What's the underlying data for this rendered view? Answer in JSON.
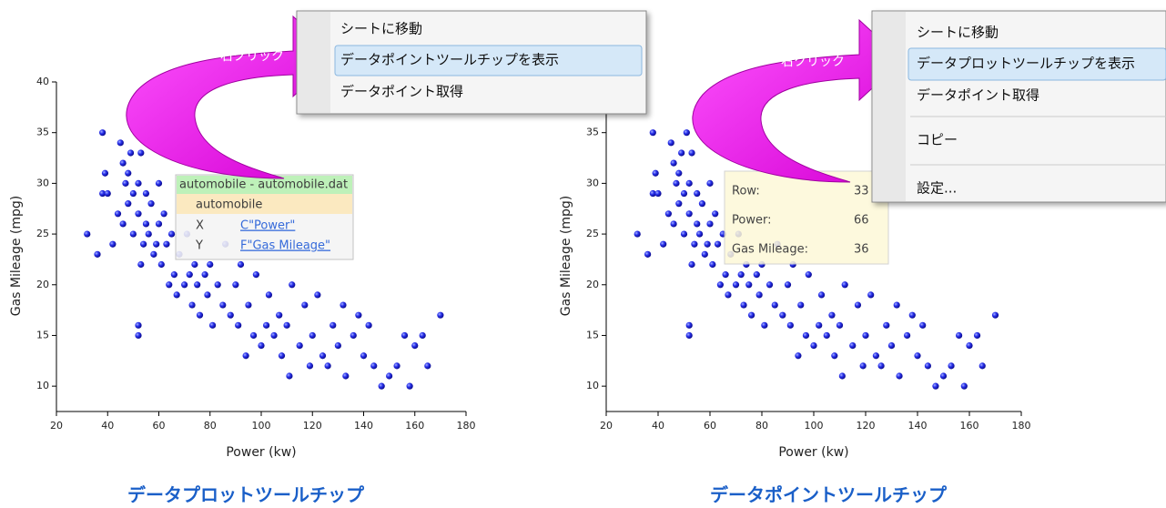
{
  "chart_data": [
    {
      "type": "scatter",
      "x_label": "Power (kw)",
      "y_label": "Gas Mileage (mpg)",
      "color": "#2a33ee",
      "x": [
        32,
        36,
        38,
        38,
        39,
        40,
        42,
        44,
        45,
        46,
        46,
        47,
        48,
        48,
        49,
        50,
        50,
        51,
        52,
        52,
        52,
        52,
        53,
        53,
        54,
        55,
        55,
        56,
        57,
        58,
        59,
        60,
        60,
        61,
        62,
        63,
        64,
        65,
        66,
        66,
        67,
        68,
        70,
        71,
        72,
        73,
        74,
        75,
        76,
        78,
        79,
        80,
        81,
        83,
        85,
        86,
        88,
        90,
        91,
        92,
        94,
        95,
        97,
        98,
        100,
        102,
        103,
        105,
        107,
        108,
        110,
        111,
        112,
        115,
        117,
        119,
        120,
        122,
        124,
        126,
        128,
        130,
        132,
        133,
        136,
        138,
        140,
        142,
        144,
        147,
        150,
        153,
        156,
        158,
        160,
        163,
        165,
        170
      ],
      "y": [
        25,
        23,
        29,
        35,
        31,
        29,
        24,
        27,
        34,
        26,
        32,
        30,
        28,
        31,
        33,
        25,
        29,
        35,
        16,
        27,
        30,
        15,
        33,
        22,
        24,
        26,
        29,
        25,
        28,
        23,
        24,
        26,
        30,
        22,
        27,
        24,
        20,
        25,
        36,
        21,
        19,
        23,
        20,
        25,
        21,
        18,
        22,
        20,
        17,
        21,
        19,
        22,
        16,
        20,
        18,
        24,
        17,
        20,
        16,
        22,
        13,
        18,
        15,
        21,
        14,
        16,
        19,
        15,
        17,
        13,
        16,
        11,
        20,
        14,
        18,
        12,
        15,
        19,
        13,
        12,
        16,
        14,
        18,
        11,
        15,
        17,
        13,
        16,
        12,
        10,
        11,
        12,
        15,
        10,
        14,
        15,
        12,
        17
      ],
      "xlim": [
        20,
        180
      ],
      "ylim": [
        7.5,
        40
      ],
      "xticks": [
        20,
        40,
        60,
        80,
        100,
        120,
        140,
        160,
        180
      ],
      "yticks": [
        10,
        15,
        20,
        25,
        30,
        35,
        40
      ]
    },
    {
      "type": "scatter",
      "x_label": "Power (kw)",
      "y_label": "Gas Mileage (mpg)",
      "color": "#2a33ee",
      "x": [
        32,
        36,
        38,
        38,
        39,
        40,
        42,
        44,
        45,
        46,
        46,
        47,
        48,
        48,
        49,
        50,
        50,
        51,
        52,
        52,
        52,
        52,
        53,
        53,
        54,
        55,
        55,
        56,
        57,
        58,
        59,
        60,
        60,
        61,
        62,
        63,
        64,
        65,
        66,
        66,
        67,
        68,
        70,
        71,
        72,
        73,
        74,
        75,
        76,
        78,
        79,
        80,
        81,
        83,
        85,
        86,
        88,
        90,
        91,
        92,
        94,
        95,
        97,
        98,
        100,
        102,
        103,
        105,
        107,
        108,
        110,
        111,
        112,
        115,
        117,
        119,
        120,
        122,
        124,
        126,
        128,
        130,
        132,
        133,
        136,
        138,
        140,
        142,
        144,
        147,
        150,
        153,
        156,
        158,
        160,
        163,
        165,
        170
      ],
      "y": [
        25,
        23,
        29,
        35,
        31,
        29,
        24,
        27,
        34,
        26,
        32,
        30,
        28,
        31,
        33,
        25,
        29,
        35,
        16,
        27,
        30,
        15,
        33,
        22,
        24,
        26,
        29,
        25,
        28,
        23,
        24,
        26,
        30,
        22,
        27,
        24,
        20,
        25,
        36,
        21,
        19,
        23,
        20,
        25,
        21,
        18,
        22,
        20,
        17,
        21,
        19,
        22,
        16,
        20,
        18,
        24,
        17,
        20,
        16,
        22,
        13,
        18,
        15,
        21,
        14,
        16,
        19,
        15,
        17,
        13,
        16,
        11,
        20,
        14,
        18,
        12,
        15,
        19,
        13,
        12,
        16,
        14,
        18,
        11,
        15,
        17,
        13,
        16,
        12,
        10,
        11,
        12,
        15,
        10,
        14,
        15,
        12,
        17
      ],
      "xlim": [
        20,
        180
      ],
      "ylim": [
        7.5,
        40
      ],
      "xticks": [
        20,
        40,
        60,
        80,
        100,
        120,
        140,
        160,
        180
      ],
      "yticks": [
        10,
        15,
        20,
        25,
        30,
        35,
        40
      ]
    }
  ],
  "panels": [
    {
      "menu": [
        "シートに移動",
        "データポイントツールチップを表示",
        "データポイント取得"
      ],
      "gesture": "右クリック",
      "tooltip": {
        "title": "automobile - automobile.dat",
        "book": "automobile",
        "rows": [
          [
            "X",
            "C\"Power\""
          ],
          [
            "Y",
            "F\"Gas Mileage\""
          ]
        ]
      },
      "caption": "データプロットツールチップ"
    },
    {
      "menu": [
        "シートに移動",
        "データプロットツールチップを表示",
        "データポイント取得",
        "コピー",
        "設定..."
      ],
      "gesture": "右クリック",
      "tooltip": {
        "rows": [
          [
            "Row:",
            "33"
          ],
          [
            "Power:",
            "66"
          ],
          [
            "Gas Mileage:",
            "36"
          ]
        ]
      },
      "caption": "データポイントツールチップ"
    }
  ]
}
